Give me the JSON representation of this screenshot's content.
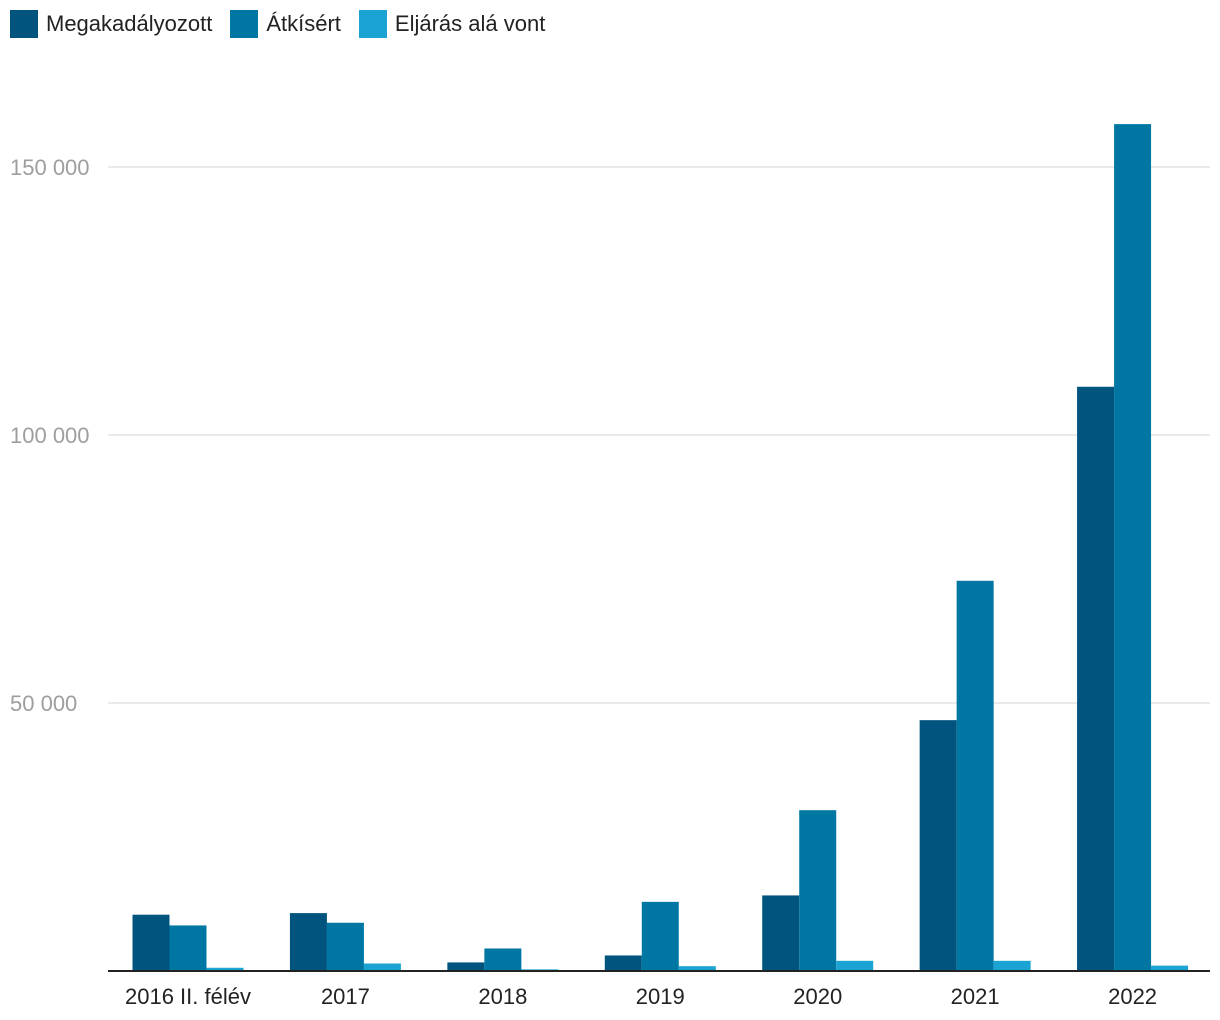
{
  "chart_data": {
    "type": "bar",
    "title": "",
    "xlabel": "",
    "ylabel": "",
    "categories": [
      "2016 II. félév",
      "2017",
      "2018",
      "2019",
      "2020",
      "2021",
      "2022"
    ],
    "series": [
      {
        "name": "Megakadályozott",
        "color": "#00547e",
        "values": [
          10500,
          10800,
          1600,
          2900,
          14100,
          46800,
          109000
        ]
      },
      {
        "name": "Átkísért",
        "color": "#0077a3",
        "values": [
          8500,
          9000,
          4200,
          12900,
          30000,
          72800,
          158000
        ]
      },
      {
        "name": "Eljárás alá vont",
        "color": "#1ba3d3",
        "values": [
          600,
          1400,
          300,
          900,
          1900,
          1900,
          1000
        ]
      }
    ],
    "ylim": [
      0,
      160000
    ],
    "yticks": [
      50000,
      100000,
      150000
    ],
    "ytick_labels": [
      "50 000",
      "100 000",
      "150 000"
    ],
    "grid": true,
    "legend_position": "top-left"
  }
}
